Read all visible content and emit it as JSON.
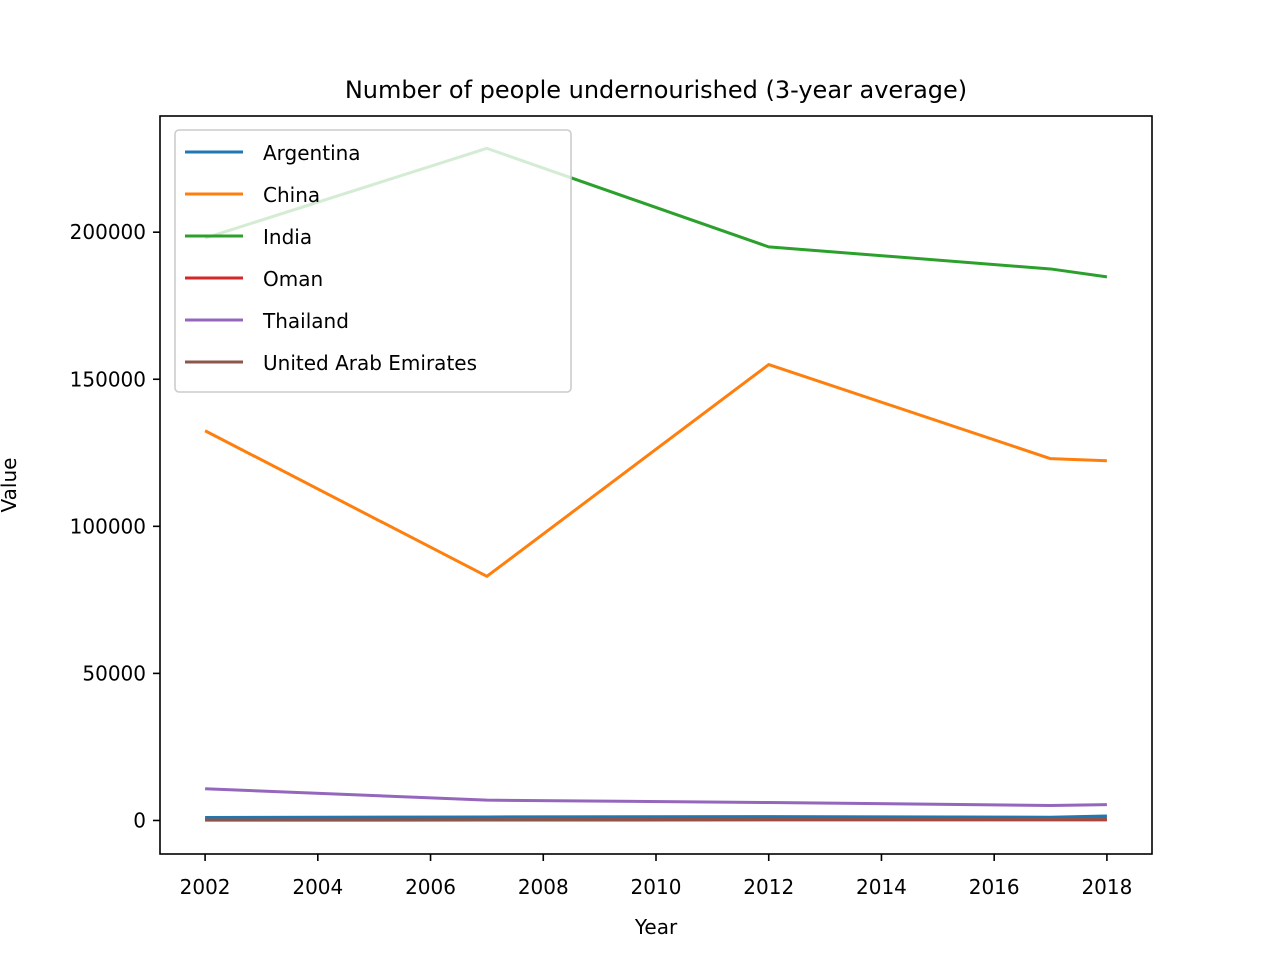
{
  "chart_data": {
    "type": "line",
    "title": "Number of people undernourished (3-year average)",
    "xlabel": "Year",
    "ylabel": "Value",
    "x": [
      2002,
      2007,
      2012,
      2017,
      2018
    ],
    "xlim": [
      2001.2,
      2018.8
    ],
    "ylim": [
      -11400,
      239500
    ],
    "xticks": [
      2002,
      2004,
      2006,
      2008,
      2010,
      2012,
      2014,
      2016,
      2018
    ],
    "yticks": [
      0,
      50000,
      100000,
      150000,
      200000
    ],
    "grid": false,
    "legend_position": "top-left",
    "series": [
      {
        "name": "Argentina",
        "color": "#1f77b4",
        "values": [
          1000,
          1200,
          1300,
          1100,
          1500
        ]
      },
      {
        "name": "China",
        "color": "#ff7f0e",
        "values": [
          132500,
          83000,
          155000,
          123000,
          122300
        ]
      },
      {
        "name": "India",
        "color": "#2ca02c",
        "values": [
          198000,
          228500,
          195000,
          187500,
          184800
        ]
      },
      {
        "name": "Oman",
        "color": "#d62728",
        "values": [
          100,
          150,
          200,
          200,
          200
        ]
      },
      {
        "name": "Thailand",
        "color": "#9467bd",
        "values": [
          10800,
          6900,
          6100,
          5100,
          5400
        ]
      },
      {
        "name": "United Arab Emirates",
        "color": "#8c564b",
        "values": [
          200,
          300,
          400,
          450,
          500
        ]
      }
    ]
  }
}
